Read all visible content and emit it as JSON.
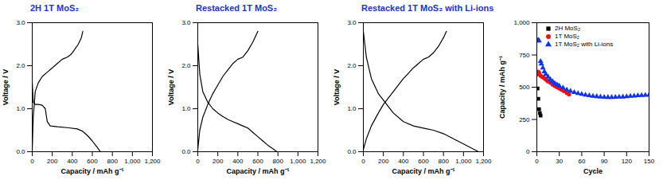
{
  "chart_data": [
    {
      "type": "line",
      "title": "2H 1T MoS₂",
      "x_label": "Capacity / mAh g⁻¹",
      "y_label": "Voltage / V",
      "xlim": [
        0,
        1200
      ],
      "xticks": [
        0,
        200,
        400,
        600,
        800,
        1000,
        1200
      ],
      "ylim": [
        0,
        3
      ],
      "yticks": [
        0,
        1,
        2,
        3
      ],
      "series": [
        {
          "color": "#000000",
          "x": [
            0,
            10,
            30,
            60,
            100,
            130,
            150,
            180,
            250,
            350,
            450,
            500,
            550,
            600,
            650,
            680
          ],
          "values": [
            1.6,
            1.15,
            1.1,
            1.1,
            1.08,
            1.0,
            0.7,
            0.6,
            0.58,
            0.56,
            0.53,
            0.48,
            0.38,
            0.25,
            0.1,
            0
          ]
        },
        {
          "color": "#000000",
          "x": [
            0,
            10,
            30,
            60,
            100,
            150,
            200,
            250,
            300,
            350,
            380,
            400,
            430,
            460,
            490,
            505
          ],
          "values": [
            0.05,
            0.8,
            1.4,
            1.6,
            1.75,
            1.85,
            1.95,
            2.05,
            2.15,
            2.2,
            2.25,
            2.3,
            2.4,
            2.5,
            2.65,
            2.8
          ]
        }
      ]
    },
    {
      "type": "line",
      "title": "Restacked 1T MoS₂",
      "x_label": "Capacity / mAh g⁻¹",
      "y_label": "Voltage / V",
      "xlim": [
        0,
        1200
      ],
      "xticks": [
        0,
        200,
        400,
        600,
        800,
        1000,
        1200
      ],
      "ylim": [
        0,
        3
      ],
      "yticks": [
        0,
        1,
        2,
        3
      ],
      "series": [
        {
          "color": "#000000",
          "x": [
            0,
            20,
            50,
            100,
            150,
            200,
            250,
            300,
            350,
            400,
            450,
            500,
            550,
            600,
            650,
            700,
            750,
            790
          ],
          "values": [
            2.5,
            1.8,
            1.4,
            1.15,
            1.0,
            0.9,
            0.82,
            0.75,
            0.7,
            0.65,
            0.6,
            0.55,
            0.45,
            0.35,
            0.25,
            0.15,
            0.07,
            0
          ]
        },
        {
          "color": "#000000",
          "x": [
            0,
            20,
            50,
            100,
            150,
            200,
            250,
            300,
            350,
            400,
            450,
            500,
            550,
            600
          ],
          "values": [
            0.05,
            0.5,
            0.8,
            1.1,
            1.35,
            1.55,
            1.75,
            1.9,
            2.05,
            2.15,
            2.2,
            2.35,
            2.55,
            2.8
          ]
        }
      ]
    },
    {
      "type": "line",
      "title": "Restacked 1T MoS₂ with Li-ions",
      "x_label": "Capacity / mAh g⁻¹",
      "y_label": "Voltage / V",
      "xlim": [
        0,
        1200
      ],
      "xticks": [
        0,
        200,
        400,
        600,
        800,
        1000,
        1200
      ],
      "ylim": [
        0,
        3
      ],
      "yticks": [
        0,
        1,
        2,
        3
      ],
      "series": [
        {
          "color": "#000000",
          "x": [
            0,
            30,
            80,
            150,
            200,
            250,
            300,
            400,
            500,
            600,
            700,
            800,
            900,
            1000,
            1100,
            1150
          ],
          "values": [
            2.8,
            2.2,
            1.7,
            1.35,
            1.2,
            1.05,
            0.9,
            0.7,
            0.6,
            0.55,
            0.5,
            0.42,
            0.3,
            0.18,
            0.06,
            0
          ]
        },
        {
          "color": "#000000",
          "x": [
            0,
            30,
            80,
            150,
            200,
            300,
            400,
            500,
            550,
            600,
            650,
            700,
            750,
            800,
            830
          ],
          "values": [
            0.05,
            0.3,
            0.6,
            0.9,
            1.1,
            1.4,
            1.7,
            1.95,
            2.05,
            2.15,
            2.2,
            2.3,
            2.45,
            2.65,
            2.8
          ]
        }
      ]
    },
    {
      "type": "scatter",
      "x_label": "Cycle",
      "y_label": "Capacity / mAh g⁻¹",
      "xlim": [
        0,
        150
      ],
      "xticks": [
        0,
        30,
        60,
        90,
        120,
        150
      ],
      "ylim": [
        0,
        1000
      ],
      "yticks": [
        0,
        250,
        500,
        750,
        1000
      ],
      "legend": "top-left",
      "series": [
        {
          "name": "2H MoS₂",
          "color": "#000000",
          "marker": "square",
          "x": [
            1,
            2,
            3,
            4,
            5
          ],
          "values": [
            490,
            410,
            330,
            300,
            280
          ]
        },
        {
          "name": "1T MoS₂",
          "color": "#ee1111",
          "marker": "circle",
          "x": [
            1,
            2,
            3,
            5,
            7,
            9,
            11,
            13,
            15,
            18,
            21,
            24,
            27,
            30,
            33,
            36,
            40,
            43
          ],
          "values": [
            600,
            620,
            610,
            590,
            580,
            575,
            565,
            555,
            545,
            535,
            520,
            510,
            500,
            490,
            480,
            470,
            455,
            445
          ]
        },
        {
          "name": "1T MoS₂ with Li-ions",
          "color": "#1133ee",
          "marker": "triangle",
          "x": [
            1,
            2,
            3,
            5,
            6,
            8,
            10,
            12,
            15,
            18,
            21,
            24,
            27,
            30,
            35,
            40,
            45,
            50,
            55,
            60,
            65,
            70,
            75,
            80,
            85,
            90,
            95,
            100,
            105,
            110,
            115,
            120,
            125,
            130,
            135,
            140,
            145,
            150
          ],
          "values": [
            860,
            865,
            860,
            700,
            680,
            650,
            620,
            600,
            580,
            560,
            545,
            530,
            520,
            510,
            495,
            480,
            470,
            460,
            452,
            446,
            440,
            435,
            430,
            428,
            425,
            423,
            422,
            422,
            423,
            424,
            425,
            427,
            430,
            432,
            435,
            437,
            438,
            440
          ]
        }
      ]
    }
  ]
}
